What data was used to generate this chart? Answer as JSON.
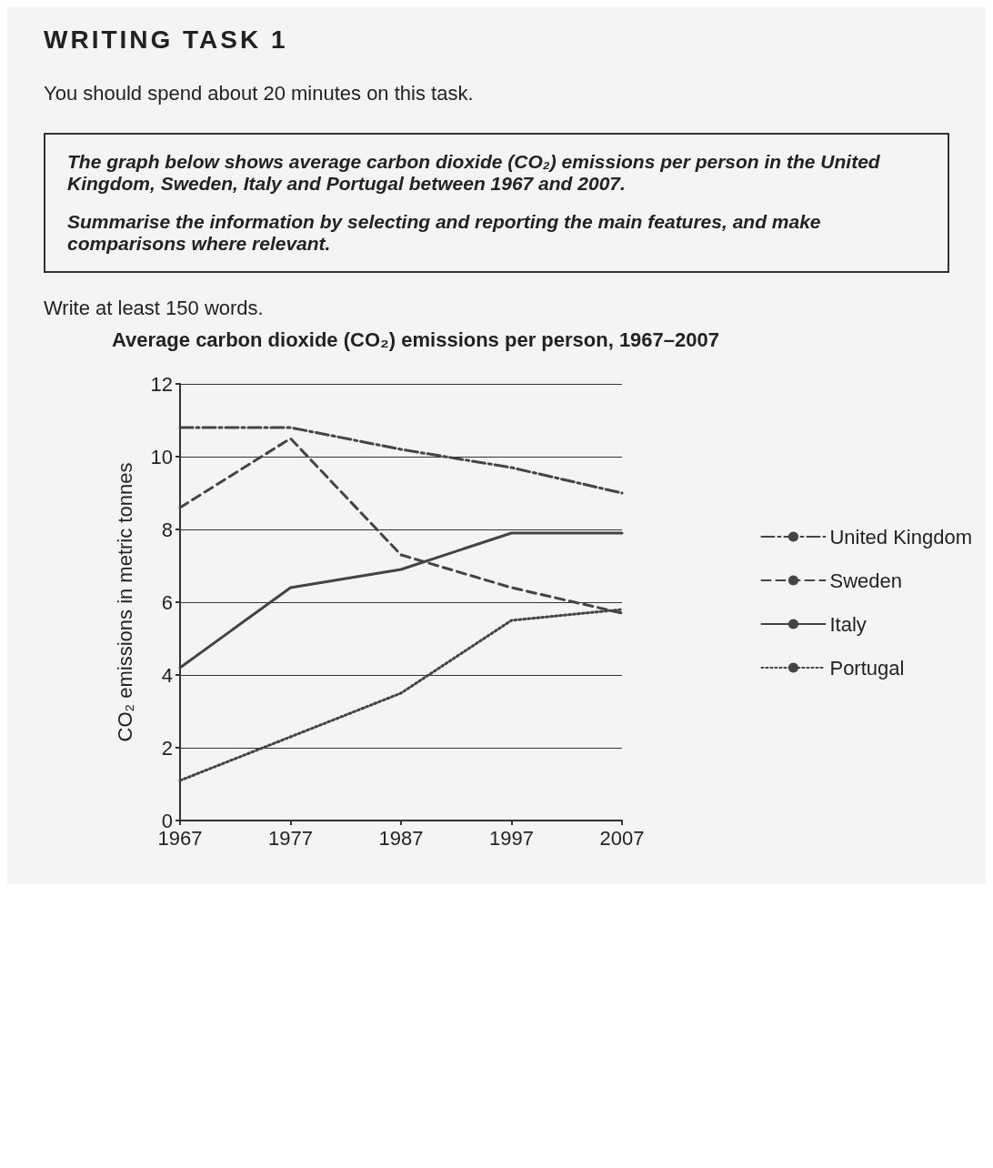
{
  "chart_data": {
    "type": "line",
    "title": "Average carbon dioxide (CO₂) emissions per person, 1967–2007",
    "annotations": [
      "WRITING TASK 1",
      "You should spend about 20 minutes on this task.",
      "The graph below shows average carbon dioxide (CO₂) emissions per person in the United Kingdom, Sweden, Italy and Portugal between 1967 and 2007.",
      "Summarise the information by selecting and reporting the main features, and make comparisons where relevant.",
      "Write at least 150 words."
    ],
    "ylabel": "CO₂ emissions in metric tonnes",
    "x": [
      1967,
      1977,
      1987,
      1997,
      2007
    ],
    "xlim": [
      1967,
      2007
    ],
    "xticks": [
      1967,
      1977,
      1987,
      1997,
      2007
    ],
    "ylim": [
      0,
      12
    ],
    "yticks": [
      0,
      2,
      4,
      6,
      8,
      10,
      12
    ],
    "grid": "y",
    "legend": "right",
    "marker": "none",
    "series": [
      {
        "name": "United Kingdom",
        "color": "#444444",
        "line_style": "dashdot",
        "values": [
          10.8,
          10.8,
          10.2,
          9.7,
          9.0
        ]
      },
      {
        "name": "Sweden",
        "color": "#444444",
        "line_style": "dashed",
        "values": [
          8.6,
          10.5,
          7.3,
          6.4,
          5.7
        ]
      },
      {
        "name": "Italy",
        "color": "#444444",
        "line_style": "solid",
        "values": [
          4.2,
          6.4,
          6.9,
          7.9,
          7.9
        ]
      },
      {
        "name": "Portugal",
        "color": "#444444",
        "line_style": "dotted",
        "values": [
          1.1,
          2.3,
          3.5,
          5.5,
          5.8
        ]
      }
    ]
  }
}
